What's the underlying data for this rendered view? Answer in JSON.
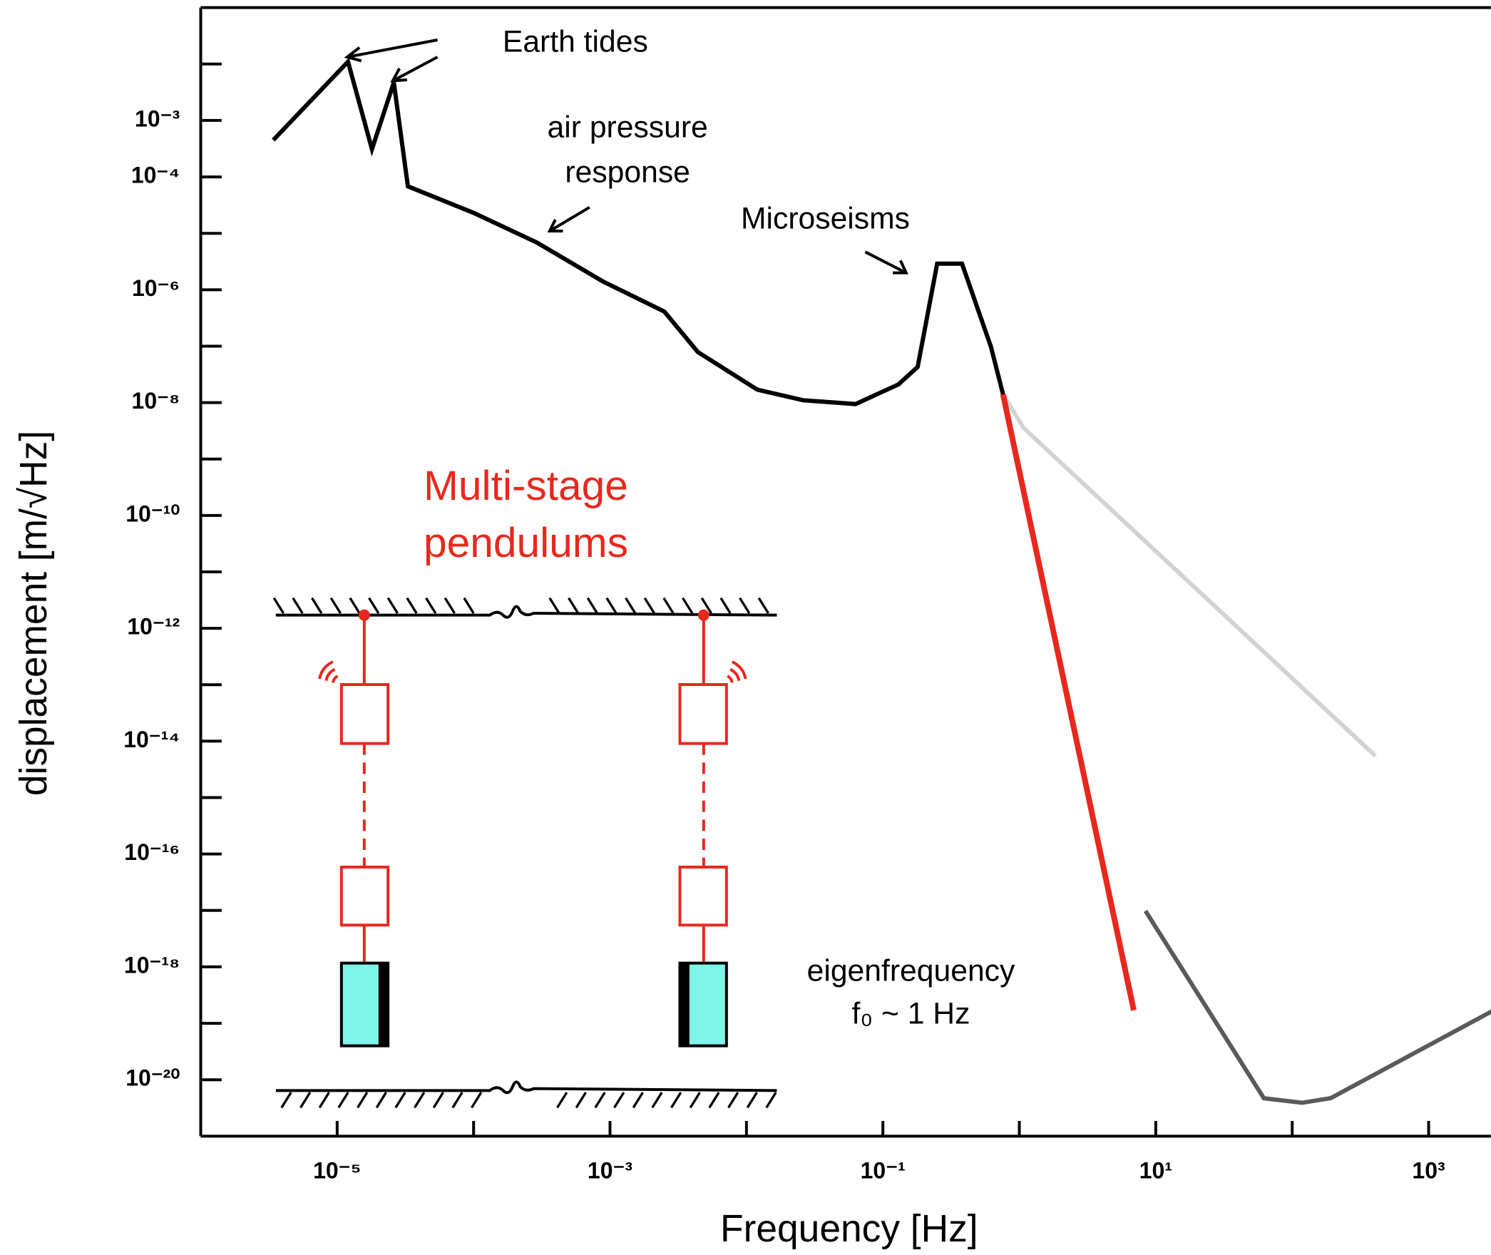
{
  "chart_data": {
    "type": "line",
    "x_label": "Frequency [Hz]",
    "y_label": "displacement [m/√Hz]",
    "log_x": true,
    "log_y": true,
    "xlim": [
      1e-06,
      3000
    ],
    "ylim": [
      1e-21,
      0.1
    ],
    "xticks": [
      {
        "value": 1e-05,
        "label": "10⁻⁵"
      },
      {
        "value": 0.001,
        "label": "10⁻³"
      },
      {
        "value": 0.1,
        "label": "10⁻¹"
      },
      {
        "value": 10,
        "label": "10¹"
      },
      {
        "value": 1000,
        "label": "10³"
      }
    ],
    "xminorticks": [
      0.0001,
      0.01,
      1,
      100
    ],
    "yticks": [
      {
        "value": 0.001,
        "label": "10⁻³"
      },
      {
        "value": 0.0001,
        "label": "10⁻⁴"
      },
      {
        "value": 1e-06,
        "label": "10⁻⁶"
      },
      {
        "value": 1e-08,
        "label": "10⁻⁸"
      },
      {
        "value": 1e-10,
        "label": "10⁻¹⁰"
      },
      {
        "value": 1e-12,
        "label": "10⁻¹²"
      },
      {
        "value": 1e-14,
        "label": "10⁻¹⁴"
      },
      {
        "value": 1e-16,
        "label": "10⁻¹⁶"
      },
      {
        "value": 1e-18,
        "label": "10⁻¹⁸"
      },
      {
        "value": 1e-20,
        "label": "10⁻²⁰"
      }
    ],
    "yminorticks": [
      0.01,
      1e-05,
      1e-07,
      1e-09,
      1e-11,
      1e-13,
      1e-15,
      1e-17,
      1e-19
    ],
    "series": [
      {
        "color": "#000000",
        "x": [
          3.4e-06,
          1.2e-05,
          1.8e-05,
          2.6e-05,
          3.3e-05,
          0.0001,
          0.00029,
          0.00089,
          0.0025,
          0.0044,
          0.012,
          0.026,
          0.063,
          0.13,
          0.18,
          0.25,
          0.38,
          0.62,
          0.76
        ],
        "values": [
          0.00045,
          0.011,
          0.00031,
          0.0047,
          6.8e-05,
          2.3e-05,
          6.9e-06,
          1.4e-06,
          4.1e-07,
          7.9e-08,
          1.7e-08,
          1.1e-08,
          9.4e-09,
          2.1e-08,
          4.3e-08,
          2.9e-06,
          2.9e-06,
          9.7e-08,
          1.4e-08
        ]
      },
      {
        "color": "#d3d3d3",
        "x": [
          0.76,
          1.07,
          407
        ],
        "values": [
          1.4e-08,
          3.6e-09,
          5.5e-15
        ]
      },
      {
        "color": "#e8281e",
        "x": [
          0.76,
          6.9
        ],
        "values": [
          1.4e-08,
          1.7e-19
        ]
      },
      {
        "color": "#5a5a5a",
        "x": [
          8.4,
          62,
          118,
          191,
          3000
        ],
        "values": [
          9.8e-18,
          4.7e-21,
          3.9e-21,
          4.7e-21,
          1.7e-19
        ]
      }
    ],
    "annotations": [
      [
        "Earth tides"
      ],
      [
        "air pressure",
        "response"
      ],
      [
        "Microseisms"
      ],
      [
        "Multi-stage",
        "pendulums"
      ],
      [
        "eigenfrequency",
        "f₀ ~ 1 Hz"
      ]
    ]
  }
}
